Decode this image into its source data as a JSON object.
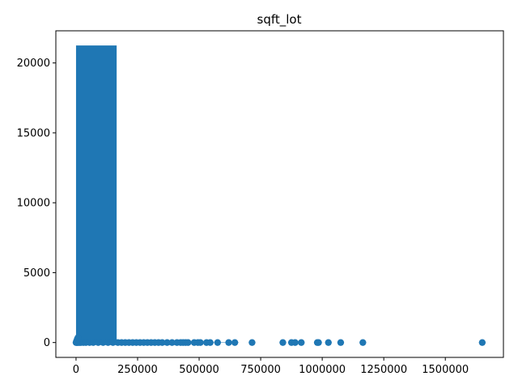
{
  "chart_data": {
    "type": "bar",
    "title": "sqft_lot",
    "xlabel": "",
    "ylabel": "",
    "xlim": [
      -82000,
      1736000
    ],
    "ylim": [
      -1062,
      22300
    ],
    "x_ticks": [
      0,
      250000,
      500000,
      750000,
      1000000,
      1250000,
      1500000
    ],
    "x_tick_labels": [
      "0",
      "250000",
      "500000",
      "750000",
      "1000000",
      "1250000",
      "1500000"
    ],
    "y_ticks": [
      0,
      5000,
      10000,
      15000,
      20000
    ],
    "y_tick_labels": [
      "0",
      "5000",
      "10000",
      "15000",
      "20000"
    ],
    "grid": false,
    "color": "#1f77b4",
    "bars": [
      {
        "x0": 0,
        "x1": 165000,
        "value": 21250
      },
      {
        "x0": 165000,
        "x1": 330000,
        "value": 170
      },
      {
        "x0": 330000,
        "x1": 495000,
        "value": 55
      },
      {
        "x0": 495000,
        "x1": 660000,
        "value": 12
      }
    ],
    "scatter": {
      "x": [
        0,
        3000,
        6000,
        10000,
        15000,
        20000,
        30000,
        40000,
        55000,
        70000,
        90000,
        110000,
        130000,
        150000,
        170000,
        185000,
        200000,
        215000,
        230000,
        245000,
        260000,
        275000,
        290000,
        305000,
        320000,
        335000,
        350000,
        370000,
        390000,
        410000,
        425000,
        435000,
        445000,
        455000,
        480000,
        495000,
        505000,
        530000,
        545000,
        575000,
        620000,
        645000,
        715000,
        840000,
        875000,
        890000,
        915000,
        980000,
        985000,
        1025000,
        1075000,
        1165000,
        1650000,
        2000,
        5000,
        8000
      ],
      "y": [
        0,
        0,
        0,
        0,
        0,
        0,
        0,
        0,
        0,
        0,
        0,
        0,
        0,
        0,
        0,
        0,
        0,
        0,
        0,
        0,
        0,
        0,
        0,
        0,
        0,
        0,
        0,
        0,
        0,
        0,
        0,
        0,
        0,
        0,
        0,
        0,
        0,
        0,
        0,
        0,
        0,
        0,
        0,
        0,
        0,
        0,
        0,
        0,
        0,
        0,
        0,
        0,
        0,
        100,
        250,
        350
      ]
    }
  }
}
